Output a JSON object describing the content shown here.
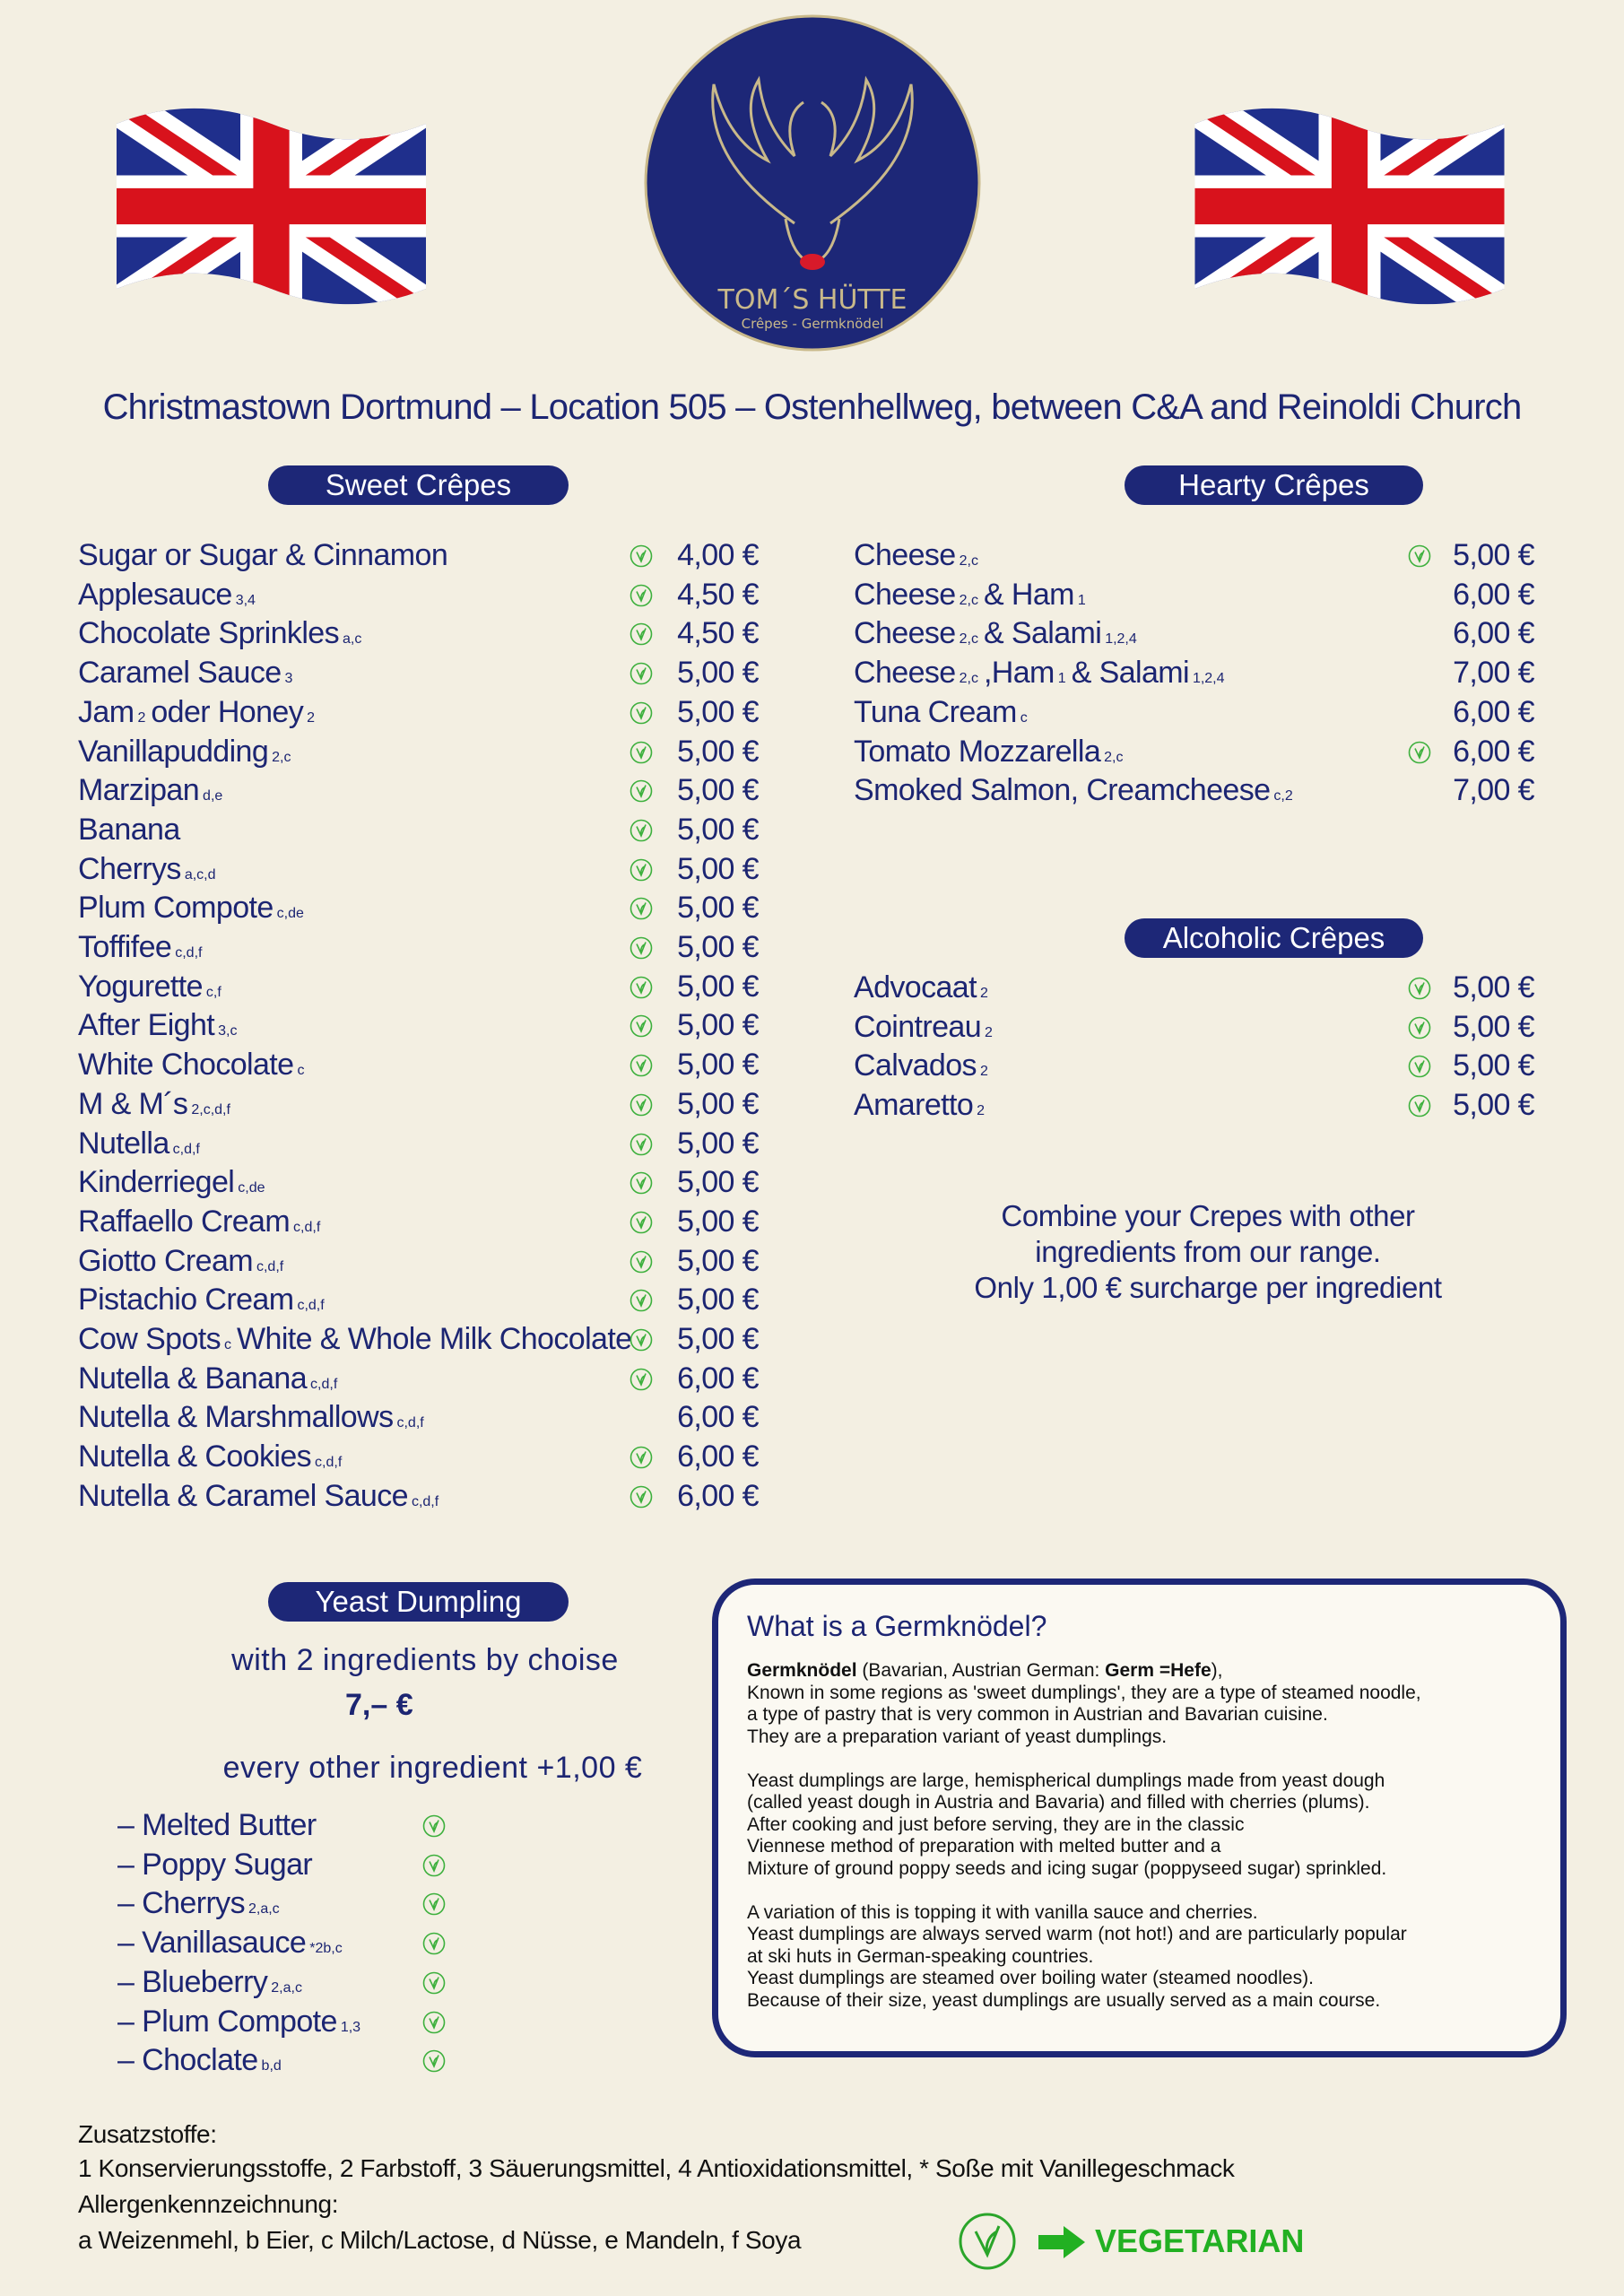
{
  "header": {
    "logo_title": "TOM´S HÜTTE",
    "logo_subtitle": "Crêpes - Germknödel",
    "location": "Christmastown Dortmund – Location 505 – Ostenhellweg, between C&A and Reinoldi Church"
  },
  "sweet_crepes": {
    "title": "Sweet Crêpes",
    "items": [
      {
        "name": [
          "Sugar or Sugar & Cinnamon"
        ],
        "vegetarian": true,
        "price": "4,00 €"
      },
      {
        "name": [
          "Applesauce",
          "3,4"
        ],
        "vegetarian": true,
        "price": "4,50 €"
      },
      {
        "name": [
          "Chocolate Sprinkles",
          "a,c"
        ],
        "vegetarian": true,
        "price": "4,50 €"
      },
      {
        "name": [
          "Caramel Sauce",
          "3"
        ],
        "vegetarian": true,
        "price": "5,00 €"
      },
      {
        "name": [
          "Jam",
          "2",
          "oder Honey",
          "2"
        ],
        "vegetarian": true,
        "price": "5,00 €"
      },
      {
        "name": [
          "Vanillapudding",
          "2,c"
        ],
        "vegetarian": true,
        "price": "5,00 €"
      },
      {
        "name": [
          "Marzipan",
          "d,e"
        ],
        "vegetarian": true,
        "price": "5,00 €"
      },
      {
        "name": [
          "Banana"
        ],
        "vegetarian": true,
        "price": "5,00 €"
      },
      {
        "name": [
          "Cherrys",
          "a,c,d"
        ],
        "vegetarian": true,
        "price": "5,00 €"
      },
      {
        "name": [
          "Plum Compote",
          "c,de"
        ],
        "vegetarian": true,
        "price": "5,00 €"
      },
      {
        "name": [
          "Toffifee",
          "c,d,f"
        ],
        "vegetarian": true,
        "price": "5,00 €"
      },
      {
        "name": [
          "Yogurette",
          "c,f"
        ],
        "vegetarian": true,
        "price": "5,00 €"
      },
      {
        "name": [
          "After Eight",
          "3,c"
        ],
        "vegetarian": true,
        "price": "5,00 €"
      },
      {
        "name": [
          "White Chocolate",
          "c"
        ],
        "vegetarian": true,
        "price": "5,00 €"
      },
      {
        "name": [
          "M & M´s",
          "2,c,d,f"
        ],
        "vegetarian": true,
        "price": "5,00 €"
      },
      {
        "name": [
          "Nutella",
          "c,d,f"
        ],
        "vegetarian": true,
        "price": "5,00 €"
      },
      {
        "name": [
          "Kinderriegel",
          "c,de"
        ],
        "vegetarian": true,
        "price": "5,00 €"
      },
      {
        "name": [
          "Raffaello Cream",
          "c,d,f"
        ],
        "vegetarian": true,
        "price": "5,00 €"
      },
      {
        "name": [
          "Giotto Cream",
          "c,d,f"
        ],
        "vegetarian": true,
        "price": "5,00 €"
      },
      {
        "name": [
          "Pistachio Cream",
          "c,d,f"
        ],
        "vegetarian": true,
        "price": "5,00 €"
      },
      {
        "name": [
          "Cow Spots",
          "c",
          "White & Whole Milk Chocolate"
        ],
        "vegetarian": true,
        "price": "5,00 €"
      },
      {
        "name": [
          "Nutella & Banana",
          "c,d,f"
        ],
        "vegetarian": true,
        "price": "6,00 €"
      },
      {
        "name": [
          "Nutella & Marshmallows",
          "c,d,f"
        ],
        "vegetarian": false,
        "price": "6,00 €"
      },
      {
        "name": [
          "Nutella & Cookies",
          "c,d,f"
        ],
        "vegetarian": true,
        "price": "6,00 €"
      },
      {
        "name": [
          "Nutella & Caramel Sauce",
          "c,d,f"
        ],
        "vegetarian": true,
        "price": "6,00 €"
      }
    ]
  },
  "hearty_crepes": {
    "title": "Hearty Crêpes",
    "items": [
      {
        "name": [
          "Cheese",
          "2,c"
        ],
        "vegetarian": true,
        "price": "5,00 €"
      },
      {
        "name": [
          "Cheese",
          "2,c",
          "& Ham",
          "1"
        ],
        "vegetarian": false,
        "price": "6,00 €"
      },
      {
        "name": [
          "Cheese",
          "2,c",
          "& Salami",
          "1,2,4"
        ],
        "vegetarian": false,
        "price": "6,00 €"
      },
      {
        "name": [
          "Cheese",
          "2,c",
          ",Ham",
          "1",
          "& Salami",
          "1,2,4"
        ],
        "vegetarian": false,
        "price": "7,00 €"
      },
      {
        "name": [
          "Tuna Cream",
          "c"
        ],
        "vegetarian": false,
        "price": "6,00 €"
      },
      {
        "name": [
          "Tomato Mozzarella",
          "2,c"
        ],
        "vegetarian": true,
        "price": "6,00 €"
      },
      {
        "name": [
          "Smoked Salmon, Creamcheese",
          "c,2"
        ],
        "vegetarian": false,
        "price": "7,00 €"
      }
    ]
  },
  "alcoholic_crepes": {
    "title": "Alcoholic Crêpes",
    "items": [
      {
        "name": [
          "Advocaat",
          "2"
        ],
        "vegetarian": true,
        "price": "5,00 €"
      },
      {
        "name": [
          "Cointreau",
          "2"
        ],
        "vegetarian": true,
        "price": "5,00 €"
      },
      {
        "name": [
          "Calvados",
          "2"
        ],
        "vegetarian": true,
        "price": "5,00 €"
      },
      {
        "name": [
          "Amaretto",
          "2"
        ],
        "vegetarian": true,
        "price": "5,00 €"
      }
    ]
  },
  "combine_note": [
    "Combine your Crepes with other",
    "ingredients from our range.",
    "Only 1,00 € surcharge per ingredient"
  ],
  "yeast_dumpling": {
    "title": "Yeast Dumpling",
    "offer": "with 2  ingredients by choise",
    "price": "7,– €",
    "extra": "every other ingredient +1,00 €",
    "items": [
      {
        "name": [
          "– Melted Butter"
        ],
        "vegetarian": true
      },
      {
        "name": [
          "– Poppy Sugar"
        ],
        "vegetarian": true
      },
      {
        "name": [
          "– Cherrys",
          "2,a,c"
        ],
        "vegetarian": true
      },
      {
        "name": [
          "– Vanillasauce",
          "*2b,c"
        ],
        "vegetarian": true
      },
      {
        "name": [
          "– Blueberry",
          "2,a,c"
        ],
        "vegetarian": true
      },
      {
        "name": [
          "– Plum Compote",
          "1,3"
        ],
        "vegetarian": true
      },
      {
        "name": [
          "– Choclate",
          "b,d"
        ],
        "vegetarian": true
      }
    ]
  },
  "info_box": {
    "title": "What is a Germknödel?",
    "lead": [
      "Germknödel",
      " (Bavarian, Austrian German: ",
      "Germ =Hefe",
      "),"
    ],
    "paragraphs": [
      [
        "Known in some regions as 'sweet dumplings', they are a type of steamed noodle,",
        "a type of pastry that is very common in Austrian and Bavarian cuisine.",
        "They are a preparation variant of yeast dumplings."
      ],
      [
        "Yeast dumplings are large, hemispherical dumplings made from yeast dough",
        "(called yeast dough in Austria and Bavaria) and filled with cherries (plums).",
        "After cooking and just before serving, they are in the classic",
        "Viennese method of preparation with melted butter and a",
        "Mixture of ground poppy seeds and icing sugar (poppyseed sugar) sprinkled."
      ],
      [
        "A variation of this is topping it with vanilla sauce and cherries.",
        "Yeast dumplings are always served warm (not hot!) and are particularly popular",
        "at ski huts in German-speaking countries.",
        "Yeast dumplings are steamed over boiling water (steamed noodles).",
        "Because of their size, yeast dumplings are usually served as a main course."
      ]
    ]
  },
  "footer": {
    "additives_title": "Zusatzstoffe:",
    "additives": "1 Konservierungsstoffe, 2 Farbstoff, 3 Säuerungsmittel, 4 Antioxidationsmittel, * Soße mit Vanillegeschmack",
    "allergens_title": "Allergenkennzeichnung:",
    "allergens": "a Weizenmehl, b Eier, c Milch/Lactose, d Nüsse, e Mandeln, f Soya",
    "legend": "VEGETARIAN"
  }
}
